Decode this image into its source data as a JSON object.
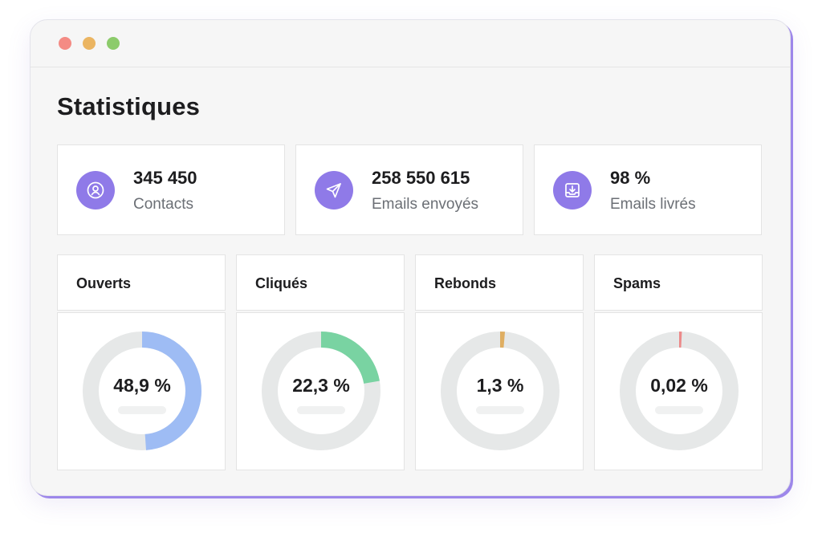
{
  "window": {
    "dots": [
      "#f48b84",
      "#ebb562",
      "#8ccb6b"
    ]
  },
  "page_title": "Statistiques",
  "stats": [
    {
      "value": "345 450",
      "label": "Contacts",
      "icon": "contact-icon"
    },
    {
      "value": "258 550 615",
      "label": "Emails envoyés",
      "icon": "send-icon"
    },
    {
      "value": "98 %",
      "label": "Emails livrés",
      "icon": "inbox-download-icon"
    }
  ],
  "metrics": [
    {
      "title": "Ouverts",
      "value_text": "48,9 %",
      "percent": 48.9,
      "color": "#9ebcf4"
    },
    {
      "title": "Cliqués",
      "value_text": "22,3 %",
      "percent": 22.3,
      "color": "#79d3a2"
    },
    {
      "title": "Rebonds",
      "value_text": "1,3 %",
      "percent": 1.3,
      "color": "#dfae62"
    },
    {
      "title": "Spams",
      "value_text": "0,02 %",
      "percent": 0.02,
      "color": "#ec8a8a"
    }
  ],
  "colors": {
    "accent": "#8f7ae8",
    "track": "#e6e8e8"
  }
}
